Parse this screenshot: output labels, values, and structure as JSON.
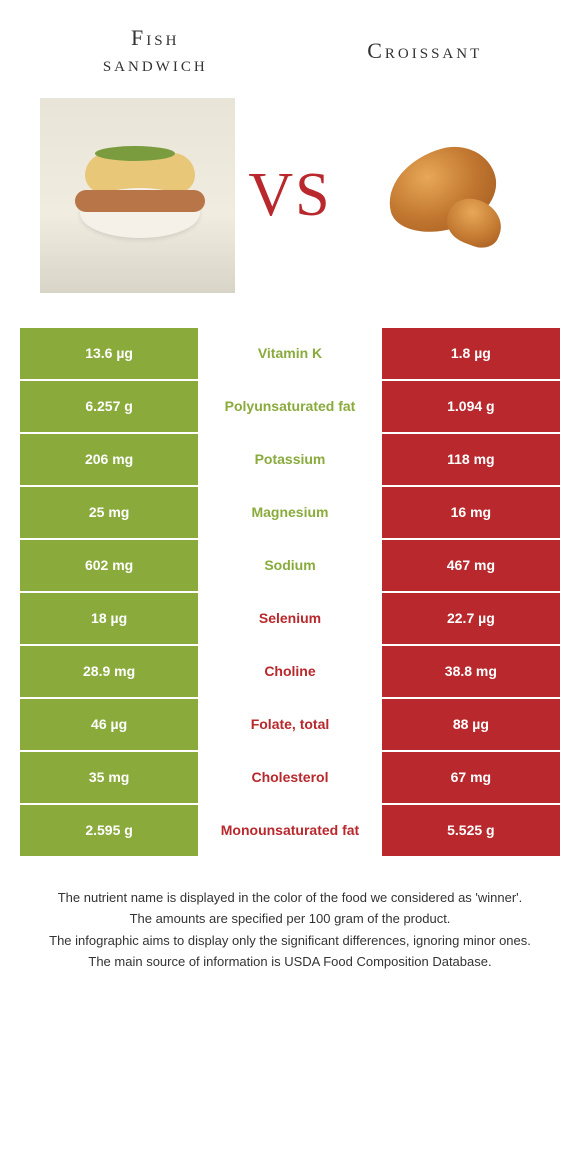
{
  "colors": {
    "left_bg": "#8aab3c",
    "right_bg": "#b8282c",
    "left_text": "#8aab3c",
    "right_text": "#b8282c"
  },
  "header": {
    "left_title_line1": "Fish",
    "left_title_line2": "sandwich",
    "right_title": "Croissant",
    "vs": "VS"
  },
  "rows": [
    {
      "left": "13.6 µg",
      "mid": "Vitamin K",
      "right": "1.8 µg",
      "winner": "left"
    },
    {
      "left": "6.257 g",
      "mid": "Polyunsaturated fat",
      "right": "1.094 g",
      "winner": "left"
    },
    {
      "left": "206 mg",
      "mid": "Potassium",
      "right": "118 mg",
      "winner": "left"
    },
    {
      "left": "25 mg",
      "mid": "Magnesium",
      "right": "16 mg",
      "winner": "left"
    },
    {
      "left": "602 mg",
      "mid": "Sodium",
      "right": "467 mg",
      "winner": "left"
    },
    {
      "left": "18 µg",
      "mid": "Selenium",
      "right": "22.7 µg",
      "winner": "right"
    },
    {
      "left": "28.9 mg",
      "mid": "Choline",
      "right": "38.8 mg",
      "winner": "right"
    },
    {
      "left": "46 µg",
      "mid": "Folate, total",
      "right": "88 µg",
      "winner": "right"
    },
    {
      "left": "35 mg",
      "mid": "Cholesterol",
      "right": "67 mg",
      "winner": "right"
    },
    {
      "left": "2.595 g",
      "mid": "Monounsaturated fat",
      "right": "5.525 g",
      "winner": "right"
    }
  ],
  "footnotes": [
    "The nutrient name is displayed in the color of the food we considered as 'winner'.",
    "The amounts are specified per 100 gram of the product.",
    "The infographic aims to display only the significant differences, ignoring minor ones.",
    "The main source of information is USDA Food Composition Database."
  ]
}
